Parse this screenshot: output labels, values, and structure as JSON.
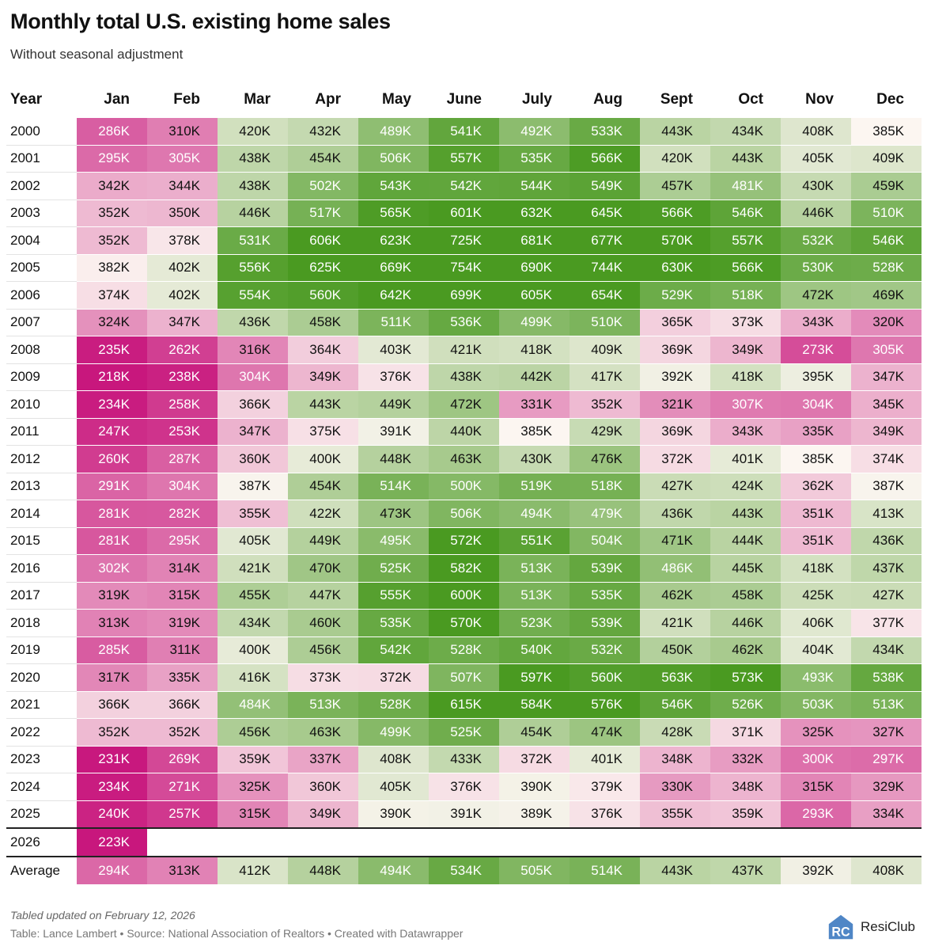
{
  "title": "Monthly total U.S. existing home sales",
  "subtitle": "Without seasonal adjustment",
  "footer": {
    "note": "Tabled updated on February 12, 2026",
    "credit": "Table: Lance Lambert • Source: National Association of Realtors • Created with Datawrapper",
    "brand_name": "ResiClub",
    "brand_logo_text": "RC"
  },
  "colors": {
    "low": "#c8177d",
    "mid": "#fcf6f1",
    "high": "#4a9a21",
    "white_text": "#ffffff",
    "dark_text": "#111111"
  },
  "chart_data": {
    "type": "heatmap",
    "title": "Monthly total U.S. existing home sales",
    "subtitle": "Without seasonal adjustment",
    "value_unit": "K",
    "columns": [
      "Year",
      "Jan",
      "Feb",
      "Mar",
      "Apr",
      "May",
      "June",
      "July",
      "Aug",
      "Sept",
      "Oct",
      "Nov",
      "Dec"
    ],
    "rows": [
      {
        "year": "2000",
        "values": [
          286,
          310,
          420,
          432,
          489,
          541,
          492,
          533,
          443,
          434,
          408,
          385
        ]
      },
      {
        "year": "2001",
        "values": [
          295,
          305,
          438,
          454,
          506,
          557,
          535,
          566,
          420,
          443,
          405,
          409
        ]
      },
      {
        "year": "2002",
        "values": [
          342,
          344,
          438,
          502,
          543,
          542,
          544,
          549,
          457,
          481,
          430,
          459
        ]
      },
      {
        "year": "2003",
        "values": [
          352,
          350,
          446,
          517,
          565,
          601,
          632,
          645,
          566,
          546,
          446,
          510
        ]
      },
      {
        "year": "2004",
        "values": [
          352,
          378,
          531,
          606,
          623,
          725,
          681,
          677,
          570,
          557,
          532,
          546
        ]
      },
      {
        "year": "2005",
        "values": [
          382,
          402,
          556,
          625,
          669,
          754,
          690,
          744,
          630,
          566,
          530,
          528
        ]
      },
      {
        "year": "2006",
        "values": [
          374,
          402,
          554,
          560,
          642,
          699,
          605,
          654,
          529,
          518,
          472,
          469
        ]
      },
      {
        "year": "2007",
        "values": [
          324,
          347,
          436,
          458,
          511,
          536,
          499,
          510,
          365,
          373,
          343,
          320
        ]
      },
      {
        "year": "2008",
        "values": [
          235,
          262,
          316,
          364,
          403,
          421,
          418,
          409,
          369,
          349,
          273,
          305
        ]
      },
      {
        "year": "2009",
        "values": [
          218,
          238,
          304,
          349,
          376,
          438,
          442,
          417,
          392,
          418,
          395,
          347
        ]
      },
      {
        "year": "2010",
        "values": [
          234,
          258,
          366,
          443,
          449,
          472,
          331,
          352,
          321,
          307,
          304,
          345
        ]
      },
      {
        "year": "2011",
        "values": [
          247,
          253,
          347,
          375,
          391,
          440,
          385,
          429,
          369,
          343,
          335,
          349
        ]
      },
      {
        "year": "2012",
        "values": [
          260,
          287,
          360,
          400,
          448,
          463,
          430,
          476,
          372,
          401,
          385,
          374
        ]
      },
      {
        "year": "2013",
        "values": [
          291,
          304,
          387,
          454,
          514,
          500,
          519,
          518,
          427,
          424,
          362,
          387
        ]
      },
      {
        "year": "2014",
        "values": [
          281,
          282,
          355,
          422,
          473,
          506,
          494,
          479,
          436,
          443,
          351,
          413
        ]
      },
      {
        "year": "2015",
        "values": [
          281,
          295,
          405,
          449,
          495,
          572,
          551,
          504,
          471,
          444,
          351,
          436
        ]
      },
      {
        "year": "2016",
        "values": [
          302,
          314,
          421,
          470,
          525,
          582,
          513,
          539,
          486,
          445,
          418,
          437
        ]
      },
      {
        "year": "2017",
        "values": [
          319,
          315,
          455,
          447,
          555,
          600,
          513,
          535,
          462,
          458,
          425,
          427
        ]
      },
      {
        "year": "2018",
        "values": [
          313,
          319,
          434,
          460,
          535,
          570,
          523,
          539,
          421,
          446,
          406,
          377
        ]
      },
      {
        "year": "2019",
        "values": [
          285,
          311,
          400,
          456,
          542,
          528,
          540,
          532,
          450,
          462,
          404,
          434
        ]
      },
      {
        "year": "2020",
        "values": [
          317,
          335,
          416,
          373,
          372,
          507,
          597,
          560,
          563,
          573,
          493,
          538
        ]
      },
      {
        "year": "2021",
        "values": [
          366,
          366,
          484,
          513,
          528,
          615,
          584,
          576,
          546,
          526,
          503,
          513
        ]
      },
      {
        "year": "2022",
        "values": [
          352,
          352,
          456,
          463,
          499,
          525,
          454,
          474,
          428,
          371,
          325,
          327
        ]
      },
      {
        "year": "2023",
        "values": [
          231,
          269,
          359,
          337,
          408,
          433,
          372,
          401,
          348,
          332,
          300,
          297
        ]
      },
      {
        "year": "2024",
        "values": [
          234,
          271,
          325,
          360,
          405,
          376,
          390,
          379,
          330,
          348,
          315,
          329
        ]
      },
      {
        "year": "2025",
        "values": [
          240,
          257,
          315,
          349,
          390,
          391,
          389,
          376,
          355,
          359,
          293,
          334
        ]
      }
    ],
    "extra_rows": [
      {
        "year": "2026",
        "values": [
          223
        ]
      }
    ],
    "average": {
      "label": "Average",
      "values": [
        294,
        313,
        412,
        448,
        494,
        534,
        505,
        514,
        443,
        437,
        392,
        408
      ]
    }
  }
}
